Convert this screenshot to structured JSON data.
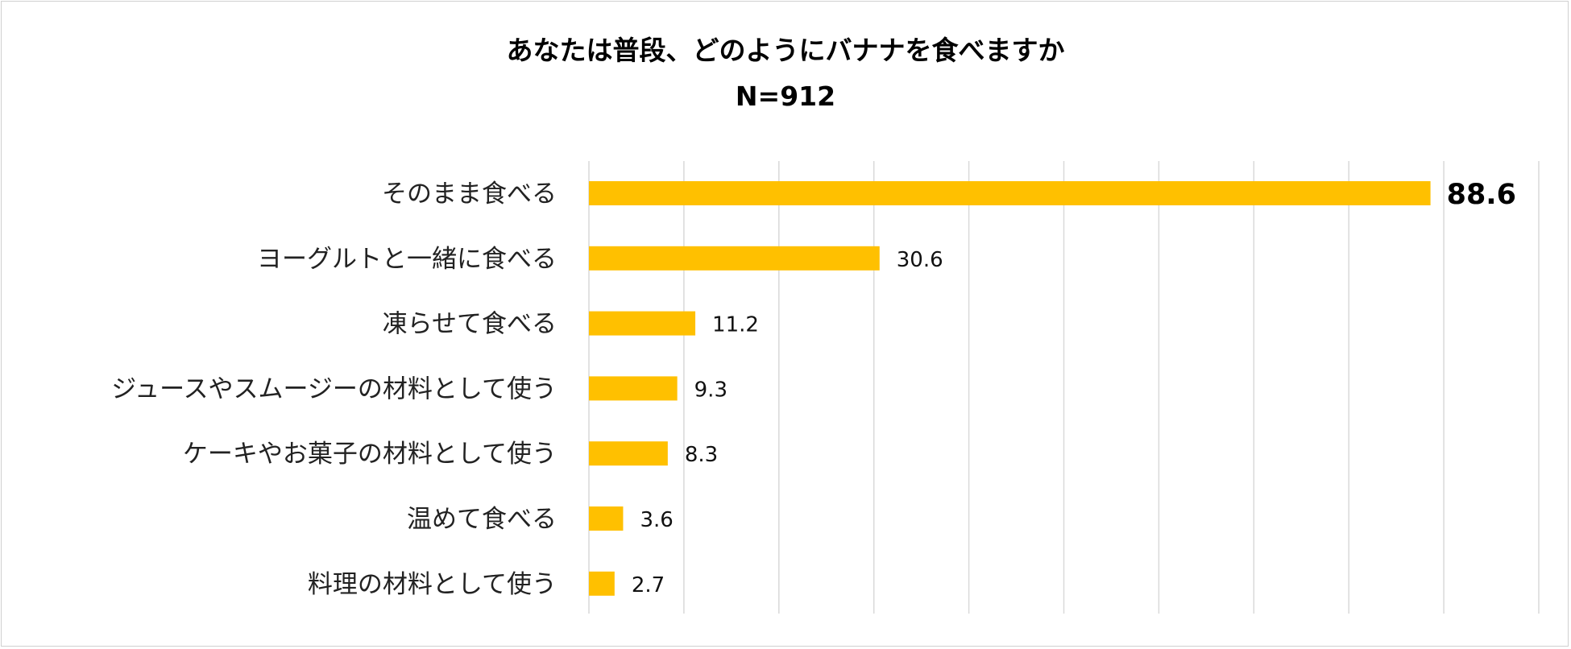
{
  "chart_data": {
    "type": "bar",
    "orientation": "horizontal",
    "title": "あなたは普段、どのようにバナナを食べますか",
    "subtitle": "N=912",
    "categories": [
      "そのまま食べる",
      "ヨーグルトと一緒に食べる",
      "凍らせて食べる",
      "ジュースやスムージーの材料として使う",
      "ケーキやお菓子の材料として使う",
      "温めて食べる",
      "料理の材料として使う"
    ],
    "values": [
      88.6,
      30.6,
      11.2,
      9.3,
      8.3,
      3.6,
      2.7
    ],
    "value_labels": [
      "88.6",
      "30.6",
      "11.2",
      "9.3",
      "8.3",
      "3.6",
      "2.7"
    ],
    "xlim": [
      0,
      100
    ],
    "grid": true,
    "xaxis_tick_labels_visible": false,
    "bar_color": "#FFC000",
    "gridline_color": "#d9d9d9",
    "highlight_first_label": true
  }
}
